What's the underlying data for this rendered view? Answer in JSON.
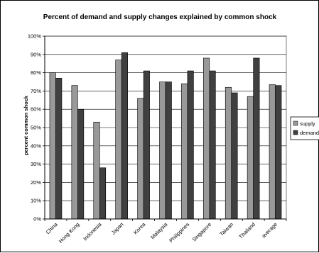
{
  "chart_data": {
    "type": "bar",
    "title": "Percent of demand and supply changes explained by common shock",
    "xlabel": "",
    "ylabel": "percent common shock",
    "ylim": [
      0,
      100
    ],
    "yticks": [
      "0%",
      "10%",
      "20%",
      "30%",
      "40%",
      "50%",
      "60%",
      "70%",
      "80%",
      "90%",
      "100%"
    ],
    "grid": true,
    "legend_position": "right",
    "categories": [
      "China",
      "Hong Kong",
      "Indonesia",
      "Japan",
      "Korea",
      "Malaysia",
      "Philippines",
      "Singapore",
      "Taiwan",
      "Thailand",
      "average"
    ],
    "series": [
      {
        "name": "supply",
        "color": "#999999",
        "values": [
          80,
          73,
          53,
          87,
          66,
          75,
          74,
          88,
          72,
          67,
          73.5
        ]
      },
      {
        "name": "demand",
        "color": "#404040",
        "values": [
          77,
          60,
          28,
          91,
          81,
          75,
          81,
          81,
          69,
          88,
          73
        ]
      }
    ]
  }
}
